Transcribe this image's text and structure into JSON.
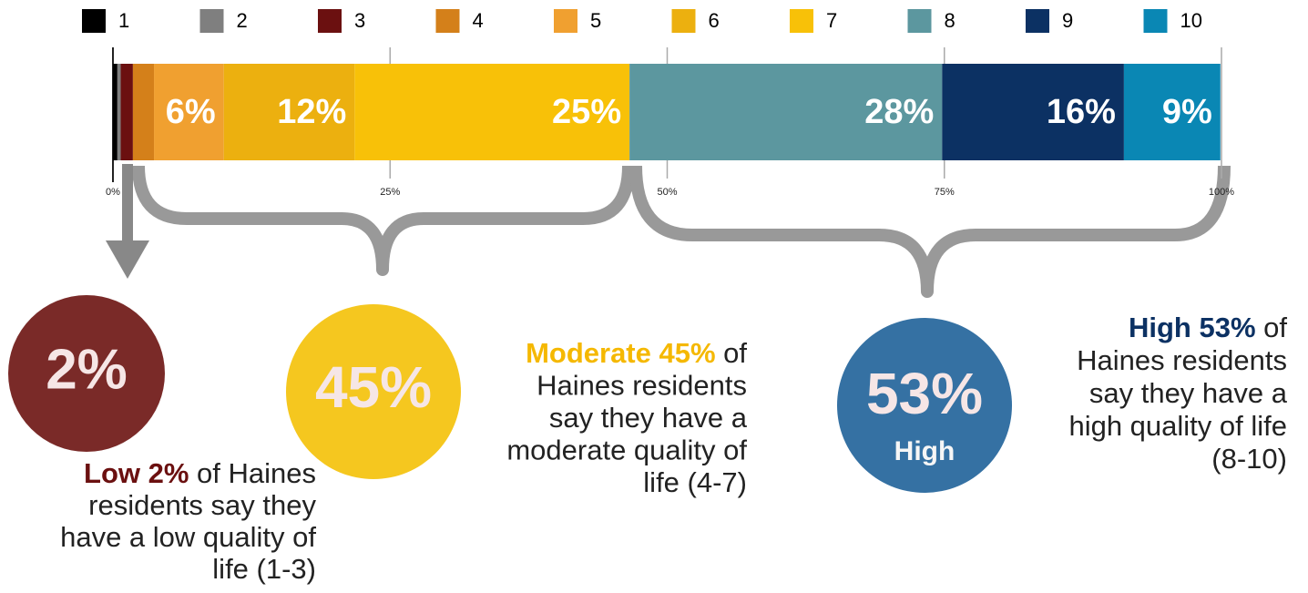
{
  "chart_data": {
    "type": "stacked_bar",
    "series": [
      {
        "name": "1",
        "color": "#000000",
        "values": [
          0.4
        ]
      },
      {
        "name": "2",
        "color": "#7f7f7f",
        "values": [
          0.3
        ]
      },
      {
        "name": "3",
        "color": "#6b1010",
        "values": [
          1.1
        ]
      },
      {
        "name": "4",
        "color": "#d4801a",
        "values": [
          1.9
        ]
      },
      {
        "name": "5",
        "color": "#f0a030",
        "values": [
          6.3
        ],
        "value_labels": [
          "6%"
        ]
      },
      {
        "name": "6",
        "color": "#ecb00f",
        "values": [
          11.8
        ],
        "value_labels": [
          "12%"
        ]
      },
      {
        "name": "7",
        "color": "#f8c108",
        "values": [
          24.8
        ],
        "value_labels": [
          "25%"
        ]
      },
      {
        "name": "8",
        "color": "#5c979f",
        "values": [
          28.2
        ],
        "value_labels": [
          "28%"
        ]
      },
      {
        "name": "9",
        "color": "#0c3163",
        "values": [
          16.4
        ],
        "value_labels": [
          "16%"
        ]
      },
      {
        "name": "10",
        "color": "#0a87b4",
        "values": [
          8.7
        ],
        "value_labels": [
          "9%"
        ]
      }
    ],
    "xlim": [
      0,
      100
    ],
    "xticks": [
      {
        "value": 0,
        "label": "0%"
      },
      {
        "value": 25,
        "label": "25%"
      },
      {
        "value": 50,
        "label": "50%"
      },
      {
        "value": 75,
        "label": "75%"
      },
      {
        "value": 100,
        "label": "100%"
      }
    ],
    "grid": true,
    "groups": [
      {
        "circle": "2%",
        "color": "#7a2a28",
        "lead_color": "#6b1010",
        "lead": "Low 2%",
        "first": " of Haines",
        "lines": [
          "residents say they",
          "have a low quality of",
          "life (1-3)"
        ]
      },
      {
        "circle": "45%",
        "color": "#f5c71f",
        "lead_color": "#f5b800",
        "lead": "Moderate 45%",
        "first": " of",
        "lines": [
          "Haines residents",
          "say they have a",
          "moderate quality of",
          "life (4-7)"
        ]
      },
      {
        "circle": "53%",
        "sub": "High",
        "color": "#3571a3",
        "lead_color": "#0c3163",
        "lead": "High 53%",
        "first": " of",
        "lines": [
          "Haines residents",
          "say they have a",
          "high quality of life",
          "(8-10)"
        ]
      }
    ]
  }
}
